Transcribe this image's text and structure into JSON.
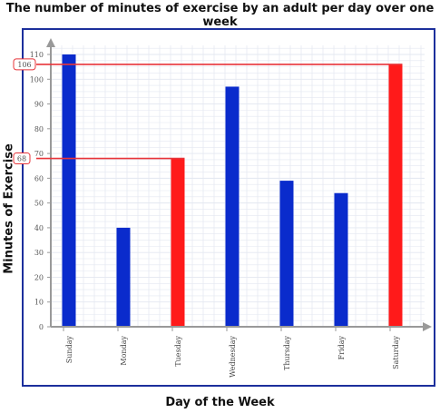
{
  "chart_data": {
    "type": "bar",
    "title": "The number of minutes of exercise by an adult per day over one week",
    "xlabel": "Day of the Week",
    "ylabel": "Minutes of Exercise",
    "categories": [
      "Sunday",
      "Monday",
      "Tuesday",
      "Wednesday",
      "Thursday",
      "Friday",
      "Saturday"
    ],
    "values": [
      110,
      40,
      68,
      97,
      59,
      54,
      106
    ],
    "bar_colors": [
      "#0a2bcc",
      "#0a2bcc",
      "#ff1a1a",
      "#0a2bcc",
      "#0a2bcc",
      "#0a2bcc",
      "#ff1a1a"
    ],
    "ylim": [
      0,
      110
    ],
    "yticks": [
      0,
      10,
      20,
      30,
      40,
      50,
      60,
      70,
      80,
      90,
      100,
      110
    ],
    "grid": true,
    "annotations": [
      {
        "label": "106",
        "value": 106,
        "category_index": 6
      },
      {
        "label": "68",
        "value": 68,
        "category_index": 2
      }
    ],
    "colors": {
      "frame": "#1c2f9c",
      "annotation_line": "#e8343a",
      "grid": "#e3e7f0",
      "axis": "#999999"
    }
  }
}
